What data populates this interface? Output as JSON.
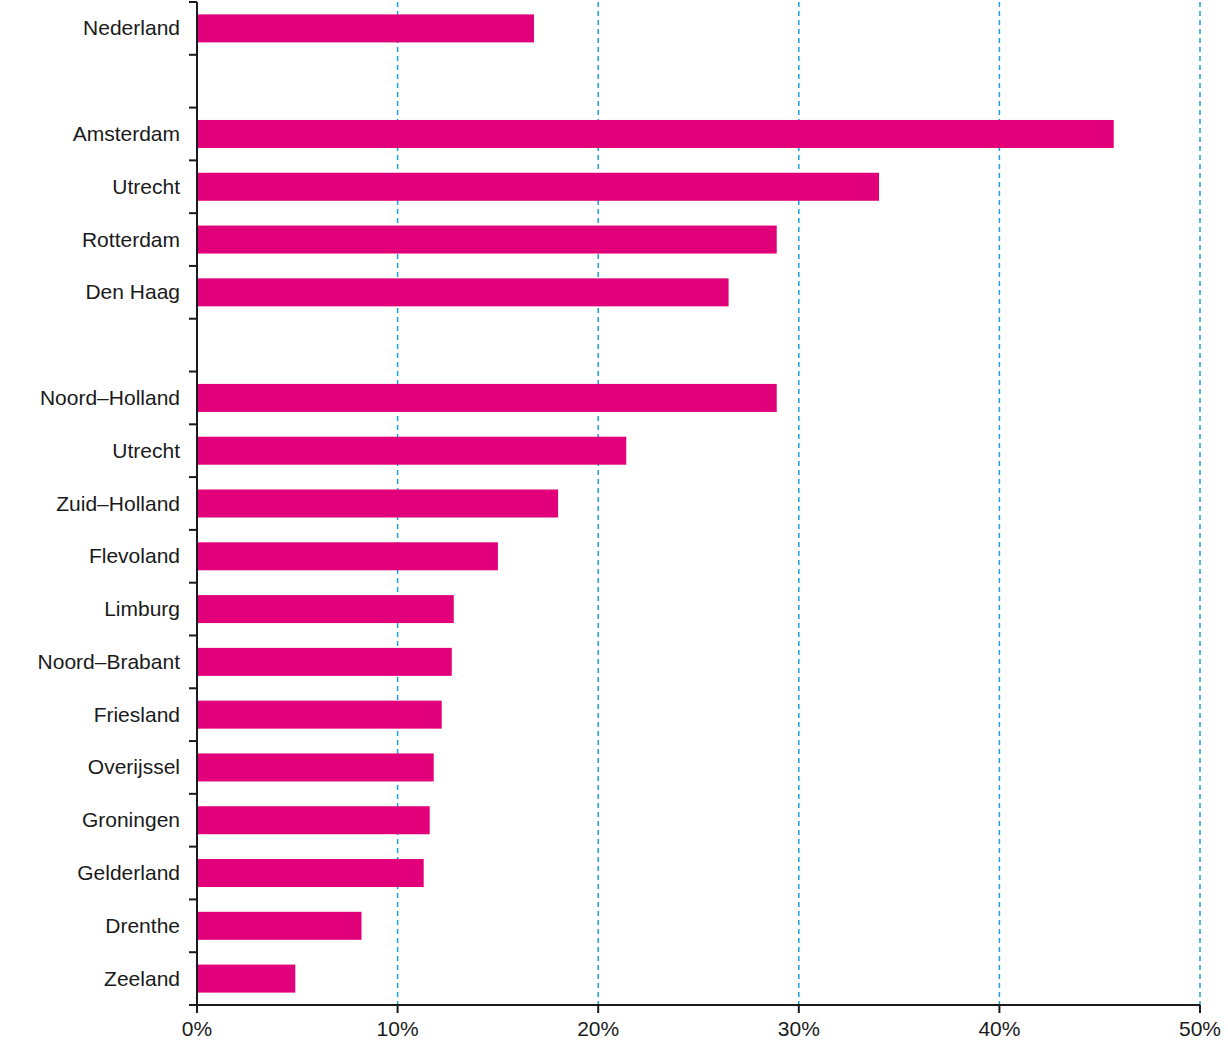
{
  "chart_data": {
    "type": "bar",
    "orientation": "horizontal",
    "color": "#e2007a",
    "grid": true,
    "categories": [
      "Nederland",
      null,
      "Amsterdam",
      "Utrecht",
      "Rotterdam",
      "Den Haag",
      null,
      "Noord–Holland",
      "Utrecht",
      "Zuid–Holland",
      "Flevoland",
      "Limburg",
      "Noord–Brabant",
      "Friesland",
      "Overijssel",
      "Groningen",
      "Gelderland",
      "Drenthe",
      "Zeeland"
    ],
    "values": [
      16.8,
      null,
      45.7,
      34.0,
      28.9,
      26.5,
      null,
      28.9,
      21.4,
      18.0,
      15.0,
      12.8,
      12.7,
      12.2,
      11.8,
      11.6,
      11.3,
      8.2,
      4.9
    ],
    "xlim": [
      0,
      50
    ],
    "xticks": [
      {
        "value": 0,
        "label": "0%"
      },
      {
        "value": 10,
        "label": "10%"
      },
      {
        "value": 20,
        "label": "20%"
      },
      {
        "value": 30,
        "label": "30%"
      },
      {
        "value": 40,
        "label": "40%"
      },
      {
        "value": 50,
        "label": "50%"
      }
    ]
  }
}
